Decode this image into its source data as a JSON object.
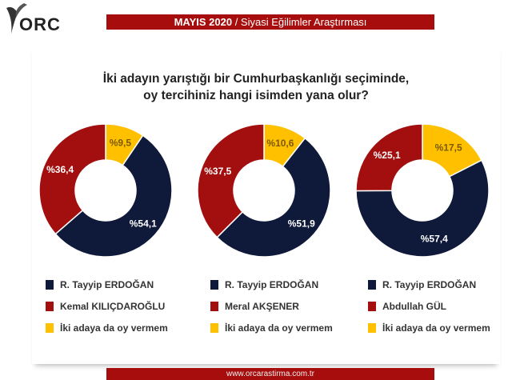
{
  "logo": {
    "text": "ORC"
  },
  "header": {
    "bold": "MAYIS 2020",
    "rest": " / Siyasi Eğilimler Araştırması"
  },
  "question": {
    "line1": "İki adayın yarıştığı bir Cumhurbaşkanlığı seçiminde,",
    "line2": "oy tercihiniz hangi isimden yana olur?"
  },
  "colors": {
    "navy": "#0f1a3a",
    "red": "#a30f0f",
    "yellow": "#ffc000"
  },
  "chart_data": [
    {
      "type": "pie",
      "categories": [
        "R. Tayyip ERDOĞAN",
        "Kemal KILIÇDAROĞLU",
        "İki adaya da oy vermem"
      ],
      "values": [
        54.1,
        36.4,
        9.5
      ],
      "labels": [
        "%54,1",
        "%36,4",
        "%9,5"
      ]
    },
    {
      "type": "pie",
      "categories": [
        "R. Tayyip ERDOĞAN",
        "Meral AKŞENER",
        "İki adaya da oy vermem"
      ],
      "values": [
        51.9,
        37.5,
        10.6
      ],
      "labels": [
        "%51,9",
        "%37,5",
        "%10,6"
      ]
    },
    {
      "type": "pie",
      "categories": [
        "R. Tayyip ERDOĞAN",
        "Abdullah GÜL",
        "İki adaya da oy vermem"
      ],
      "values": [
        57.4,
        25.1,
        17.5
      ],
      "labels": [
        "%57,4",
        "%25,1",
        "%17,5"
      ]
    }
  ],
  "footer": {
    "url": "www.orcarastirma.com.tr"
  }
}
